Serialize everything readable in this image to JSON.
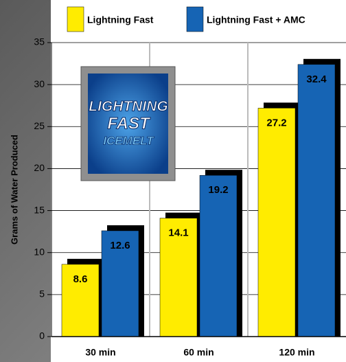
{
  "chart_data": {
    "type": "bar",
    "y_label": "Grams of Water Produced",
    "categories": [
      "30 min",
      "60 min",
      "120 min"
    ],
    "series": [
      {
        "name": "Lightning Fast",
        "color": "#ffec00",
        "values": [
          8.6,
          14.1,
          27.2
        ]
      },
      {
        "name": "Lightning Fast + AMC",
        "color": "#1664b4",
        "values": [
          12.6,
          19.2,
          32.4
        ]
      }
    ],
    "ylim": [
      0,
      35
    ],
    "yticks": [
      0,
      5,
      10,
      15,
      20,
      25,
      30,
      35
    ],
    "grid": true
  },
  "logo": {
    "line1": "LIGHTNING",
    "line2": "FAST",
    "line3": "ICEMELT"
  }
}
